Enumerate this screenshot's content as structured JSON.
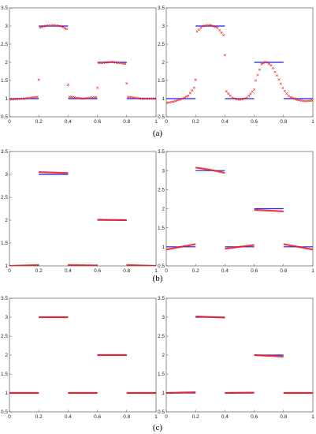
{
  "figure": {
    "row_labels": [
      "(a)",
      "(b)",
      "(c)"
    ]
  },
  "colors": {
    "exact": "#1a1aee",
    "numerical": "#ee1a1a"
  },
  "chart_data": [
    {
      "id": "a-left",
      "row": 0,
      "col": 0,
      "type": "line",
      "xlim": [
        0,
        1
      ],
      "ylim": [
        0.5,
        3.5
      ],
      "xticks": [
        "0",
        "0.2",
        "0.4",
        "0.6",
        "0.8",
        "1"
      ],
      "yticks": [
        "0.5",
        "1",
        "1.5",
        "2",
        "2.5",
        "3",
        "3.5"
      ],
      "style": "sparse-x",
      "series": [
        {
          "role": "exact",
          "segments": [
            {
              "x": [
                0,
                0.2
              ],
              "y": [
                1,
                1
              ]
            },
            {
              "x": [
                0.2,
                0.4
              ],
              "y": [
                3,
                3
              ]
            },
            {
              "x": [
                0.4,
                0.6
              ],
              "y": [
                1,
                1
              ]
            },
            {
              "x": [
                0.6,
                0.8
              ],
              "y": [
                2,
                2
              ]
            },
            {
              "x": [
                0.8,
                1.0
              ],
              "y": [
                1,
                1
              ]
            }
          ]
        },
        {
          "role": "numerical",
          "segments": [
            {
              "x": [
                0.0,
                0.1,
                0.19
              ],
              "y": [
                0.98,
                1.0,
                1.05
              ]
            },
            {
              "x": [
                0.21,
                0.25,
                0.3,
                0.35,
                0.39
              ],
              "y": [
                2.96,
                3.01,
                3.02,
                3.0,
                2.92
              ]
            },
            {
              "x": [
                0.41,
                0.5,
                0.59
              ],
              "y": [
                1.05,
                1.0,
                1.04
              ]
            },
            {
              "x": [
                0.61,
                0.7,
                0.79
              ],
              "y": [
                1.98,
                2.01,
                1.96
              ]
            },
            {
              "x": [
                0.81,
                0.9,
                1.0
              ],
              "y": [
                1.05,
                1.0,
                1.0
              ]
            }
          ],
          "outliers": {
            "x": [
              0.2,
              0.4,
              0.6,
              0.8
            ],
            "y": [
              1.52,
              1.38,
              1.3,
              1.42
            ]
          }
        }
      ]
    },
    {
      "id": "a-right",
      "row": 0,
      "col": 1,
      "type": "line",
      "xlim": [
        0,
        1
      ],
      "ylim": [
        0.5,
        3.5
      ],
      "xticks": [
        "0",
        "0.2",
        "0.4",
        "0.6",
        "0.8",
        "1"
      ],
      "yticks": [
        "0.5",
        "1",
        "1.5",
        "2",
        "2.5",
        "3",
        "3.5"
      ],
      "style": "dense-x",
      "series": [
        {
          "role": "exact",
          "segments": [
            {
              "x": [
                0,
                0.2
              ],
              "y": [
                1,
                1
              ]
            },
            {
              "x": [
                0.2,
                0.4
              ],
              "y": [
                3,
                3
              ]
            },
            {
              "x": [
                0.4,
                0.6
              ],
              "y": [
                1,
                1
              ]
            },
            {
              "x": [
                0.6,
                0.8
              ],
              "y": [
                2,
                2
              ]
            },
            {
              "x": [
                0.8,
                1.0
              ],
              "y": [
                1,
                1
              ]
            }
          ]
        },
        {
          "role": "numerical",
          "segments": [
            {
              "x": [
                0.0,
                0.05,
                0.1,
                0.15,
                0.19
              ],
              "y": [
                0.88,
                0.92,
                0.98,
                1.08,
                1.3
              ]
            },
            {
              "x": [
                0.21,
                0.25,
                0.3,
                0.35,
                0.39
              ],
              "y": [
                2.85,
                3.0,
                3.03,
                2.95,
                2.75
              ]
            },
            {
              "x": [
                0.41,
                0.45,
                0.5,
                0.55,
                0.6
              ],
              "y": [
                1.2,
                1.02,
                0.97,
                1.02,
                1.25
              ]
            },
            {
              "x": [
                0.61,
                0.65,
                0.68,
                0.72,
                0.76,
                0.8,
                0.84,
                0.9,
                0.95,
                1.0
              ],
              "y": [
                1.5,
                1.95,
                2.02,
                1.9,
                1.6,
                1.25,
                1.05,
                0.96,
                0.93,
                0.95
              ]
            }
          ],
          "outliers": {
            "x": [
              0.2,
              0.4
            ],
            "y": [
              1.52,
              2.2
            ]
          }
        }
      ]
    },
    {
      "id": "b-left",
      "row": 1,
      "col": 0,
      "type": "line",
      "xlim": [
        0,
        1
      ],
      "ylim": [
        1,
        3.5
      ],
      "xticks": [
        "0",
        "0.2",
        "0.4",
        "0.6",
        "0.8",
        "1"
      ],
      "yticks": [
        "1",
        "1.5",
        "2",
        "2.5",
        "3",
        "3.5"
      ],
      "style": "thick",
      "series": [
        {
          "role": "exact",
          "segments": [
            {
              "x": [
                0,
                0.2
              ],
              "y": [
                1,
                1
              ]
            },
            {
              "x": [
                0.2,
                0.4
              ],
              "y": [
                3,
                3
              ]
            },
            {
              "x": [
                0.4,
                0.6
              ],
              "y": [
                1,
                1
              ]
            },
            {
              "x": [
                0.6,
                0.8
              ],
              "y": [
                2,
                2
              ]
            },
            {
              "x": [
                0.8,
                1.0
              ],
              "y": [
                1,
                1
              ]
            }
          ]
        },
        {
          "role": "numerical",
          "segments": [
            {
              "x": [
                0,
                0.2
              ],
              "y": [
                1.0,
                1.02
              ]
            },
            {
              "x": [
                0.2,
                0.4
              ],
              "y": [
                3.05,
                3.03
              ]
            },
            {
              "x": [
                0.4,
                0.6
              ],
              "y": [
                1.02,
                1.01
              ]
            },
            {
              "x": [
                0.6,
                0.8
              ],
              "y": [
                2.01,
                2.0
              ]
            },
            {
              "x": [
                0.8,
                1.0
              ],
              "y": [
                1.02,
                1.0
              ]
            }
          ]
        }
      ]
    },
    {
      "id": "b-right",
      "row": 1,
      "col": 1,
      "type": "line",
      "xlim": [
        0,
        1
      ],
      "ylim": [
        0.5,
        3.5
      ],
      "xticks": [
        "0",
        "0.2",
        "0.4",
        "0.6",
        "0.8",
        "1"
      ],
      "yticks": [
        "0.5",
        "1",
        "1.5",
        "2",
        "2.5",
        "3",
        "3.5"
      ],
      "style": "thick",
      "series": [
        {
          "role": "exact",
          "segments": [
            {
              "x": [
                0,
                0.2
              ],
              "y": [
                1,
                1
              ]
            },
            {
              "x": [
                0.2,
                0.4
              ],
              "y": [
                3,
                3
              ]
            },
            {
              "x": [
                0.4,
                0.6
              ],
              "y": [
                1,
                1
              ]
            },
            {
              "x": [
                0.6,
                0.8
              ],
              "y": [
                2,
                2
              ]
            },
            {
              "x": [
                0.8,
                1.0
              ],
              "y": [
                1,
                1
              ]
            }
          ]
        },
        {
          "role": "numerical",
          "segments": [
            {
              "x": [
                0,
                0.1,
                0.2
              ],
              "y": [
                0.93,
                1.0,
                1.07
              ]
            },
            {
              "x": [
                0.2,
                0.3,
                0.4
              ],
              "y": [
                3.08,
                3.02,
                2.94
              ]
            },
            {
              "x": [
                0.4,
                0.5,
                0.6
              ],
              "y": [
                0.95,
                1.0,
                1.05
              ]
            },
            {
              "x": [
                0.6,
                0.7,
                0.8
              ],
              "y": [
                1.97,
                1.95,
                1.93
              ]
            },
            {
              "x": [
                0.8,
                0.9,
                1.0
              ],
              "y": [
                1.07,
                1.0,
                0.93
              ]
            }
          ]
        }
      ]
    },
    {
      "id": "c-left",
      "row": 2,
      "col": 0,
      "type": "line",
      "xlim": [
        0,
        1
      ],
      "ylim": [
        0.5,
        3.5
      ],
      "xticks": [
        "0",
        "0.2",
        "0.4",
        "0.6",
        "0.8",
        "1"
      ],
      "yticks": [
        "0.5",
        "1",
        "1.5",
        "2",
        "2.5",
        "3",
        "3.5"
      ],
      "style": "thick",
      "series": [
        {
          "role": "exact",
          "segments": [
            {
              "x": [
                0,
                0.2
              ],
              "y": [
                1,
                1
              ]
            },
            {
              "x": [
                0.2,
                0.4
              ],
              "y": [
                3,
                3
              ]
            },
            {
              "x": [
                0.4,
                0.6
              ],
              "y": [
                1,
                1
              ]
            },
            {
              "x": [
                0.6,
                0.8
              ],
              "y": [
                2,
                2
              ]
            },
            {
              "x": [
                0.8,
                1.0
              ],
              "y": [
                1,
                1
              ]
            }
          ]
        },
        {
          "role": "numerical",
          "segments": [
            {
              "x": [
                0,
                0.2
              ],
              "y": [
                1.0,
                1.0
              ]
            },
            {
              "x": [
                0.2,
                0.4
              ],
              "y": [
                3.0,
                3.0
              ]
            },
            {
              "x": [
                0.4,
                0.6
              ],
              "y": [
                1.0,
                1.0
              ]
            },
            {
              "x": [
                0.6,
                0.8
              ],
              "y": [
                2.0,
                2.0
              ]
            },
            {
              "x": [
                0.8,
                1.0
              ],
              "y": [
                1.0,
                1.0
              ]
            }
          ]
        }
      ]
    },
    {
      "id": "c-right",
      "row": 2,
      "col": 1,
      "type": "line",
      "xlim": [
        0,
        1
      ],
      "ylim": [
        0.5,
        3.5
      ],
      "xticks": [
        "0",
        "0.2",
        "0.4",
        "0.6",
        "0.8",
        "1"
      ],
      "yticks": [
        "0.5",
        "1",
        "1.5",
        "2",
        "2.5",
        "3",
        "3.5"
      ],
      "style": "thick",
      "series": [
        {
          "role": "exact",
          "segments": [
            {
              "x": [
                0,
                0.2
              ],
              "y": [
                1,
                1
              ]
            },
            {
              "x": [
                0.2,
                0.4
              ],
              "y": [
                3,
                3
              ]
            },
            {
              "x": [
                0.4,
                0.6
              ],
              "y": [
                1,
                1
              ]
            },
            {
              "x": [
                0.6,
                0.8
              ],
              "y": [
                2,
                2
              ]
            },
            {
              "x": [
                0.8,
                1.0
              ],
              "y": [
                1,
                1
              ]
            }
          ]
        },
        {
          "role": "numerical",
          "segments": [
            {
              "x": [
                0,
                0.2
              ],
              "y": [
                1.0,
                1.02
              ]
            },
            {
              "x": [
                0.2,
                0.4
              ],
              "y": [
                3.02,
                2.99
              ]
            },
            {
              "x": [
                0.4,
                0.6
              ],
              "y": [
                1.0,
                1.01
              ]
            },
            {
              "x": [
                0.6,
                0.8
              ],
              "y": [
                2.0,
                1.96
              ]
            },
            {
              "x": [
                0.8,
                1.0
              ],
              "y": [
                1.0,
                1.0
              ]
            }
          ]
        }
      ]
    }
  ]
}
